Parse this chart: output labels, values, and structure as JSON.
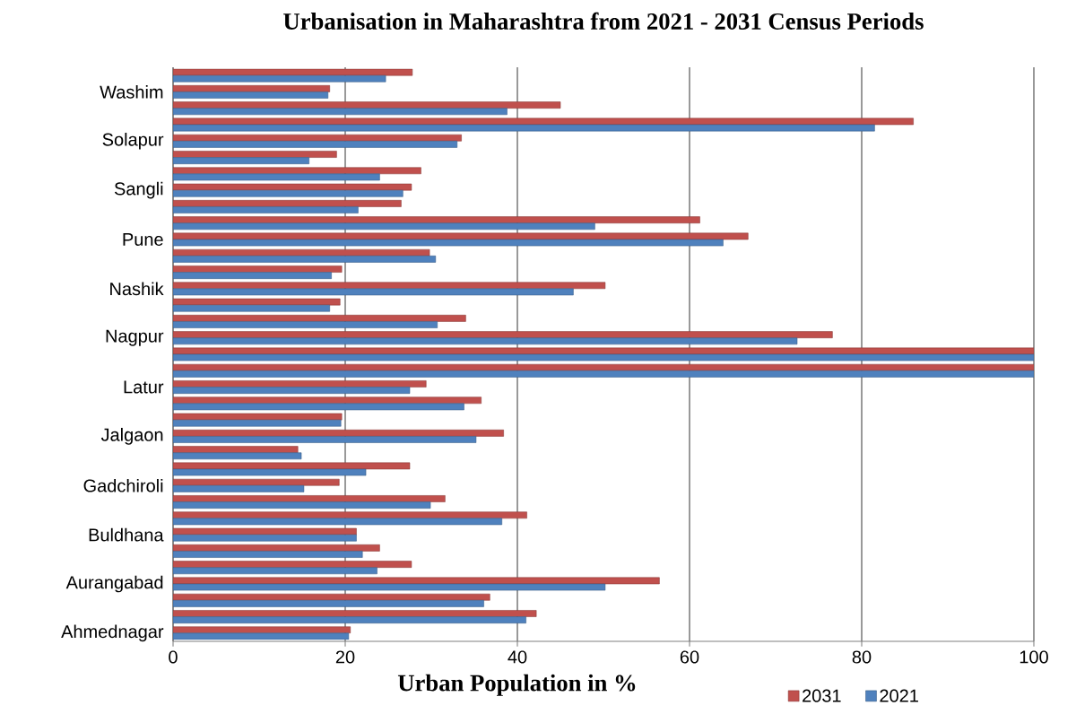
{
  "chart_data": {
    "type": "bar",
    "orientation": "horizontal",
    "title": "Urbanisation in Maharashtra from 2021 - 2031 Census Periods",
    "xlabel": "Urban Population in %",
    "categories": [
      null,
      "Washim",
      null,
      null,
      "Solapur",
      null,
      null,
      "Sangli",
      null,
      null,
      "Pune",
      null,
      null,
      "Nashik",
      null,
      null,
      "Nagpur",
      null,
      null,
      "Latur",
      null,
      null,
      "Jalgaon",
      null,
      null,
      "Gadchiroli",
      null,
      null,
      "Buldhana",
      null,
      null,
      "Aurangabad",
      null,
      null,
      "Ahmednagar"
    ],
    "series": [
      {
        "name": "2031",
        "color": "#c0504d",
        "values": [
          27.8,
          18.2,
          45,
          86,
          33.5,
          19,
          28.8,
          27.7,
          26.5,
          61.2,
          66.8,
          29.8,
          19.6,
          50.2,
          19.4,
          34,
          76.6,
          100,
          100,
          29.4,
          35.8,
          19.6,
          38.4,
          14.5,
          27.5,
          19.3,
          31.6,
          41.1,
          21.3,
          24,
          27.7,
          56.5,
          36.8,
          42.2,
          20.6
        ]
      },
      {
        "name": "2021",
        "color": "#4f81bd",
        "values": [
          24.7,
          18,
          38.8,
          81.5,
          33,
          15.8,
          24,
          26.7,
          21.5,
          49,
          63.9,
          30.5,
          18.4,
          46.5,
          18.2,
          30.7,
          72.5,
          100,
          100,
          27.5,
          33.8,
          19.5,
          35.2,
          14.9,
          22.4,
          15.2,
          29.9,
          38.2,
          21.3,
          22,
          23.7,
          50.2,
          36.1,
          41,
          20.4
        ]
      }
    ],
    "xlim": [
      0,
      100
    ],
    "xticks": [
      0,
      20,
      40,
      60,
      80,
      100
    ],
    "grid": "x",
    "legend": "bottom right"
  }
}
